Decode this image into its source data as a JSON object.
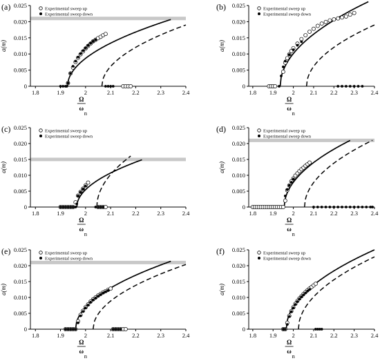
{
  "colors": {
    "axis": "#000000",
    "threshold_band": "#c8c8c8",
    "solid_curve": "#000000",
    "dashed_curve": "#000000",
    "marker_up_fill": "#ffffff",
    "marker_down_fill": "#000000"
  },
  "chart_data": [
    {
      "panel": "(a)",
      "type": "line",
      "xlim": [
        1.78,
        2.4
      ],
      "ylim": [
        0,
        0.025
      ],
      "xticks": [
        "1.8",
        "1.9",
        "2",
        "2.1",
        "2.2",
        "2.3",
        "2.4"
      ],
      "yticks": [
        "0",
        "0.005",
        "0.010",
        "0.015",
        "0.020",
        "0.025"
      ],
      "ylabel": "a(m)",
      "xlabel_num": "Ω",
      "xlabel_den": "ω",
      "xlabel_sub": "n",
      "legend": [
        "Experimental sweep up",
        "Experimental sweep down"
      ],
      "threshold": 0.021,
      "solid_curve": {
        "x0": 1.928,
        "x1": 2.34,
        "k": 0.0322
      },
      "dashed_curve": {
        "x0": 2.065,
        "x1": 2.4,
        "k": 0.0328
      },
      "series": [
        {
          "name": "Experimental sweep up",
          "x": [
            1.93,
            1.94,
            1.95,
            1.96,
            1.97,
            1.98,
            1.99,
            2.0,
            2.01,
            2.02,
            2.03,
            2.04,
            2.05,
            2.06,
            2.07,
            2.08,
            2.15,
            2.16,
            2.17,
            2.18
          ],
          "y": [
            0.001,
            0.004,
            0.0058,
            0.0075,
            0.0088,
            0.0099,
            0.0108,
            0.0117,
            0.0125,
            0.0132,
            0.0139,
            0.0144,
            0.0149,
            0.0153,
            0.0158,
            0.0162,
            0,
            0,
            0,
            0
          ]
        },
        {
          "name": "Experimental sweep down",
          "x": [
            1.9,
            1.91,
            1.92,
            1.925,
            1.93,
            1.94,
            1.95,
            1.96,
            1.97,
            1.98,
            1.99,
            2.0,
            2.01,
            2.02,
            2.03,
            2.04,
            2.08,
            2.09,
            2.1,
            2.11
          ],
          "y": [
            0,
            0,
            0,
            0,
            0.001,
            0.004,
            0.0062,
            0.0078,
            0.009,
            0.0101,
            0.011,
            0.0118,
            0.0126,
            0.0133,
            0.0139,
            0.0144,
            0,
            0,
            0,
            0
          ]
        }
      ]
    },
    {
      "panel": "(b)",
      "type": "line",
      "xlim": [
        1.78,
        2.4
      ],
      "ylim": [
        0,
        0.025
      ],
      "xticks": [
        "1.8",
        "1.9",
        "2",
        "2.1",
        "2.2",
        "2.3",
        "2.4"
      ],
      "yticks": [
        "0",
        "0.005",
        "0.010",
        "0.015",
        "0.020",
        "0.025"
      ],
      "ylabel": "a(m)",
      "xlabel_num": "Ω",
      "xlabel_den": "ω",
      "xlabel_sub": "n",
      "legend": [
        "Experimental sweep up",
        "Experimental sweep down"
      ],
      "threshold": null,
      "solid_curve": {
        "x0": 1.935,
        "x1": 2.37,
        "k": 0.0397
      },
      "dashed_curve": {
        "x0": 2.065,
        "x1": 2.4,
        "k": 0.0328
      },
      "series": [
        {
          "name": "Experimental sweep up",
          "x": [
            1.88,
            1.89,
            1.9,
            1.91,
            1.95,
            1.96,
            1.97,
            1.98,
            1.99,
            2.0,
            2.02,
            2.04,
            2.06,
            2.08,
            2.1,
            2.12,
            2.14,
            2.16,
            2.18,
            2.2,
            2.22,
            2.24,
            2.26,
            2.28,
            2.3
          ],
          "y": [
            0,
            0,
            0,
            0,
            0.0045,
            0.0073,
            0.0087,
            0.0099,
            0.0109,
            0.0118,
            0.0132,
            0.0146,
            0.0158,
            0.0169,
            0.0178,
            0.0187,
            0.0194,
            0.0199,
            0.0204,
            0.0207,
            0.021,
            0.0213,
            0.0216,
            0.0222,
            0.0227
          ]
        },
        {
          "name": "Experimental sweep down",
          "x": [
            1.93,
            1.94,
            1.95,
            1.96,
            1.98,
            2.0,
            2.02,
            2.04,
            2.22,
            2.24,
            2.26,
            2.28,
            2.3,
            2.32,
            2.34
          ],
          "y": [
            0,
            0.0032,
            0.006,
            0.0078,
            0.0098,
            0.0113,
            0.0127,
            0.0138,
            0,
            0,
            0,
            0,
            0,
            0,
            0
          ]
        }
      ]
    },
    {
      "panel": "(c)",
      "type": "line",
      "xlim": [
        1.78,
        2.4
      ],
      "ylim": [
        0,
        0.025
      ],
      "xticks": [
        "1.8",
        "1.9",
        "2",
        "2.1",
        "2.2",
        "2.3",
        "2.4"
      ],
      "yticks": [
        "0",
        "0.005",
        "0.010",
        "0.015",
        "0.020",
        "0.025"
      ],
      "ylabel": "a(m)",
      "xlabel_num": "Ω",
      "xlabel_den": "ω",
      "xlabel_sub": "n",
      "legend": [
        "Experimental sweep up",
        "Experimental sweep down"
      ],
      "threshold": 0.015,
      "solid_curve": {
        "x0": 1.965,
        "x1": 2.225,
        "k": 0.0292
      },
      "dashed_curve": {
        "x0": 2.045,
        "x1": 2.18,
        "k": 0.0437
      },
      "series": [
        {
          "name": "Experimental sweep up",
          "x": [
            1.9,
            1.91,
            1.92,
            1.93,
            1.94,
            1.95,
            1.96,
            1.97,
            1.98,
            1.99,
            2.0,
            2.01,
            2.05,
            2.06,
            2.07,
            2.08
          ],
          "y": [
            0,
            0,
            0,
            0,
            0,
            0,
            0.0015,
            0.0036,
            0.0048,
            0.0058,
            0.0068,
            0.0077,
            0,
            0,
            0,
            0
          ]
        },
        {
          "name": "Experimental sweep down",
          "x": [
            1.9,
            1.91,
            1.92,
            1.93,
            1.94,
            1.95,
            1.96,
            1.965,
            1.97,
            1.98,
            1.99,
            2.0,
            2.04,
            2.05,
            2.06,
            2.07
          ],
          "y": [
            0,
            0,
            0,
            0,
            0,
            0,
            0,
            0.001,
            0.0035,
            0.0047,
            0.0057,
            0.0066,
            0,
            0,
            0,
            0
          ]
        }
      ]
    },
    {
      "panel": "(d)",
      "type": "line",
      "xlim": [
        1.78,
        2.4
      ],
      "ylim": [
        0,
        0.025
      ],
      "xticks": [
        "1.8",
        "1.9",
        "2",
        "2.1",
        "2.2",
        "2.3",
        "2.4"
      ],
      "yticks": [
        "0",
        "0.005",
        "0.010",
        "0.015",
        "0.020",
        "0.025"
      ],
      "ylabel": "a(m)",
      "xlabel_num": "Ω",
      "xlabel_den": "ω",
      "xlabel_sub": "n",
      "legend": [
        "Experimental sweep up",
        "Experimental sweep down"
      ],
      "threshold": 0.021,
      "solid_curve": {
        "x0": 1.955,
        "x1": 2.28,
        "k": 0.0368
      },
      "dashed_curve": {
        "x0": 2.055,
        "x1": 2.39,
        "k": 0.0363
      },
      "series": [
        {
          "name": "Experimental sweep up",
          "x": [
            1.8,
            1.81,
            1.82,
            1.83,
            1.84,
            1.85,
            1.86,
            1.87,
            1.88,
            1.89,
            1.9,
            1.91,
            1.92,
            1.93,
            1.94,
            1.95,
            1.96,
            1.97,
            1.98,
            1.99,
            2.0,
            2.01,
            2.02,
            2.03,
            2.04,
            2.05,
            2.06,
            2.07,
            2.08
          ],
          "y": [
            0,
            0,
            0,
            0,
            0,
            0,
            0,
            0,
            0,
            0,
            0,
            0,
            0,
            0,
            0,
            0,
            0.002,
            0.0053,
            0.0068,
            0.0081,
            0.009,
            0.0099,
            0.0106,
            0.0113,
            0.0119,
            0.0124,
            0.013,
            0.0135,
            0.014
          ]
        },
        {
          "name": "Experimental sweep down",
          "x": [
            1.96,
            1.97,
            1.98,
            1.99,
            2.0,
            2.1,
            2.12,
            2.14,
            2.16,
            2.18,
            2.2,
            2.22,
            2.24,
            2.26,
            2.28,
            2.3,
            2.32,
            2.34,
            2.36,
            2.38,
            2.39
          ],
          "y": [
            0.0035,
            0.0055,
            0.0068,
            0.0078,
            0.0088,
            0,
            0,
            0,
            0,
            0,
            0,
            0,
            0,
            0,
            0,
            0,
            0,
            0,
            0,
            0,
            0
          ]
        }
      ]
    },
    {
      "panel": "(e)",
      "type": "line",
      "xlim": [
        1.78,
        2.4
      ],
      "ylim": [
        0,
        0.025
      ],
      "xticks": [
        "1.8",
        "1.9",
        "2",
        "2.1",
        "2.2",
        "2.3",
        "2.4"
      ],
      "yticks": [
        "0",
        "0.005",
        "0.010",
        "0.015",
        "0.020",
        "0.025"
      ],
      "ylabel": "a(m)",
      "xlabel_num": "Ω",
      "xlabel_den": "ω",
      "xlabel_sub": "n",
      "legend": [
        "Experimental sweep up",
        "Experimental sweep down"
      ],
      "threshold": 0.021,
      "solid_curve": {
        "x0": 1.96,
        "x1": 2.34,
        "k": 0.0347
      },
      "dashed_curve": {
        "x0": 2.03,
        "x1": 2.4,
        "k": 0.0335
      },
      "series": [
        {
          "name": "Experimental sweep up",
          "x": [
            1.92,
            1.93,
            1.94,
            1.95,
            1.96,
            1.97,
            1.98,
            1.99,
            2.0,
            2.01,
            2.02,
            2.03,
            2.04,
            2.05,
            2.06,
            2.07,
            2.08,
            2.09,
            2.1,
            2.11,
            2.12,
            2.13,
            2.14,
            2.15,
            2.16
          ],
          "y": [
            0,
            0,
            0,
            0,
            0,
            0.0025,
            0.0045,
            0.0058,
            0.0069,
            0.0078,
            0.0087,
            0.0094,
            0.01,
            0.0106,
            0.0111,
            0.0116,
            0.012,
            0.0124,
            0.0128,
            0,
            0,
            0,
            0,
            0,
            0
          ]
        },
        {
          "name": "Experimental sweep down",
          "x": [
            1.92,
            1.93,
            1.94,
            1.95,
            1.96,
            1.97,
            1.98,
            1.99,
            2.0,
            2.01,
            2.02,
            2.03,
            2.04,
            2.05,
            2.06,
            2.07,
            2.08,
            2.09,
            2.11,
            2.12,
            2.13,
            2.14
          ],
          "y": [
            0,
            0,
            0,
            0,
            0,
            0.002,
            0.0042,
            0.0056,
            0.0067,
            0.0076,
            0.0085,
            0.0092,
            0.0098,
            0.0104,
            0.0109,
            0.0114,
            0.0118,
            0.0122,
            0,
            0,
            0,
            0
          ]
        }
      ]
    },
    {
      "panel": "(f)",
      "type": "line",
      "xlim": [
        1.78,
        2.4
      ],
      "ylim": [
        0,
        0.025
      ],
      "xticks": [
        "1.8",
        "1.9",
        "2",
        "2.1",
        "2.2",
        "2.3",
        "2.4"
      ],
      "yticks": [
        "0",
        "0.005",
        "0.010",
        "0.015",
        "0.020",
        "0.025"
      ],
      "ylabel": "a(m)",
      "xlabel_num": "Ω",
      "xlabel_den": "ω",
      "xlabel_sub": "n",
      "legend": [
        "Experimental sweep up",
        "Experimental sweep down"
      ],
      "threshold": null,
      "solid_curve": {
        "x0": 1.965,
        "x1": 2.4,
        "k": 0.0379
      },
      "dashed_curve": {
        "x0": 2.025,
        "x1": 2.4,
        "k": 0.0372
      },
      "series": [
        {
          "name": "Experimental sweep up",
          "x": [
            1.95,
            1.96,
            1.97,
            1.98,
            1.99,
            2.0,
            2.01,
            2.02,
            2.03,
            2.04,
            2.05,
            2.06,
            2.07,
            2.08,
            2.09,
            2.1,
            2.11
          ],
          "y": [
            0,
            0,
            0.002,
            0.0042,
            0.0057,
            0.0069,
            0.008,
            0.0089,
            0.0097,
            0.0104,
            0.0111,
            0.0117,
            0.0123,
            0.0128,
            0.0133,
            0.0138,
            0.0143
          ]
        },
        {
          "name": "Experimental sweep down",
          "x": [
            1.95,
            1.96,
            1.97,
            1.98,
            1.99,
            2.0,
            2.01,
            2.02,
            2.03,
            2.04,
            2.05,
            2.06,
            2.07,
            2.08,
            2.11,
            2.12,
            2.13,
            2.14
          ],
          "y": [
            0,
            0,
            0.0015,
            0.004,
            0.0055,
            0.0067,
            0.0078,
            0.0087,
            0.0095,
            0.0102,
            0.0108,
            0.0114,
            0.012,
            0.0125,
            0,
            0,
            0,
            0
          ]
        }
      ]
    }
  ]
}
